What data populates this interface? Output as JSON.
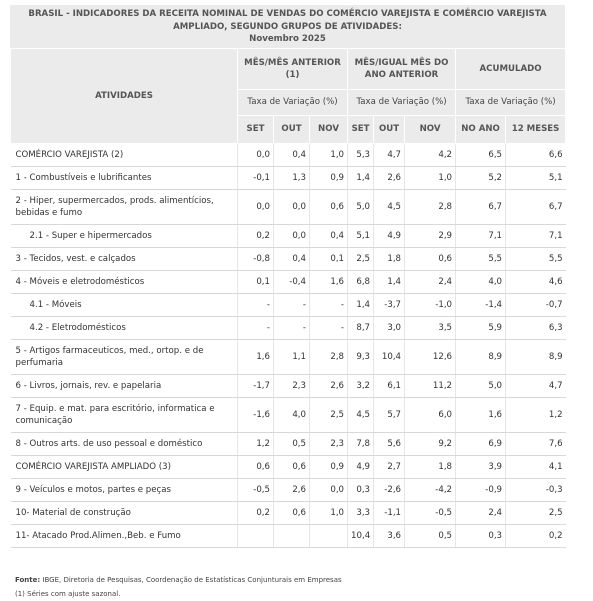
{
  "header": {
    "title": [
      "BRASIL - INDICADORES DA RECEITA NOMINAL DE VENDAS DO COMÉRCIO VAREJISTA E COMÉRCIO VAREJISTA",
      "AMPLIADO, SEGUNDO GRUPOS DE ATIVIDADES:",
      "Novembro 2025"
    ]
  },
  "table": {
    "row_header": "ATIVIDADES",
    "groups": [
      "MÊS/MÊS ANTERIOR (1)",
      "MÊS/IGUAL MÊS DO ANO ANTERIOR",
      "ACUMULADO"
    ],
    "group_spans": [
      3,
      3,
      2
    ],
    "subheaders": [
      "Taxa de Variação (%)",
      "Taxa de Variação (%)",
      "Taxa de Variação (%)"
    ],
    "columns": [
      "SET",
      "OUT",
      "NOV",
      "SET",
      "OUT",
      "NOV",
      "NO ANO",
      "12 MESES"
    ],
    "rows": [
      {
        "label": "COMÉRCIO VAREJISTA (2)",
        "values": [
          "0,0",
          "0,4",
          "1,0",
          "5,3",
          "4,7",
          "4,2",
          "6,5",
          "6,6"
        ]
      },
      {
        "label": "1 - Combustíveis e lubrificantes",
        "values": [
          "-0,1",
          "1,3",
          "0,9",
          "1,4",
          "2,6",
          "1,0",
          "5,2",
          "5,1"
        ]
      },
      {
        "label": "2 - Hiper, supermercados, prods.  alimentícios, bebidas e fumo",
        "values": [
          "0,0",
          "0,0",
          "0,6",
          "5,0",
          "4,5",
          "2,8",
          "6,7",
          "6,7"
        ]
      },
      {
        "label": "2.1 - Super e hipermercados",
        "indent": true,
        "values": [
          "0,2",
          "0,0",
          "0,4",
          "5,1",
          "4,9",
          "2,9",
          "7,1",
          "7,1"
        ]
      },
      {
        "label": "3 - Tecidos, vest. e calçados",
        "values": [
          "-0,8",
          "0,4",
          "0,1",
          "2,5",
          "1,8",
          "0,6",
          "5,5",
          "5,5"
        ]
      },
      {
        "label": "4 - Móveis e eletrodomésticos",
        "values": [
          "0,1",
          "-0,4",
          "1,6",
          "6,8",
          "1,4",
          "2,4",
          "4,0",
          "4,6"
        ]
      },
      {
        "label": "4.1 - Móveis",
        "indent": true,
        "values": [
          "-",
          "-",
          "-",
          "1,4",
          "-3,7",
          "-1,0",
          "-1,4",
          "-0,7"
        ]
      },
      {
        "label": "4.2 - Eletrodomésticos",
        "indent": true,
        "values": [
          "-",
          "-",
          "-",
          "8,7",
          "3,0",
          "3,5",
          "5,9",
          "6,3"
        ]
      },
      {
        "label": "5 - Artigos farmaceuticos, med., ortop. e de perfumaria",
        "values": [
          "1,6",
          "1,1",
          "2,8",
          "9,3",
          "10,4",
          "12,6",
          "8,9",
          "8,9"
        ]
      },
      {
        "label": "6 - Livros, jornais, rev. e papelaria",
        "values": [
          "-1,7",
          "2,3",
          "2,6",
          "3,2",
          "6,1",
          "11,2",
          "5,0",
          "4,7"
        ]
      },
      {
        "label": "7 - Equip. e mat. para escritório, informatica e comunicação",
        "values": [
          "-1,6",
          "4,0",
          "2,5",
          "4,5",
          "5,7",
          "6,0",
          "1,6",
          "1,2"
        ]
      },
      {
        "label": "8 - Outros arts. de uso pessoal e doméstico",
        "values": [
          "1,2",
          "0,5",
          "2,3",
          "7,8",
          "5,6",
          "9,2",
          "6,9",
          "7,6"
        ]
      },
      {
        "label": "COMÉRCIO VAREJISTA AMPLIADO (3)",
        "values": [
          "0,6",
          "0,6",
          "0,9",
          "4,9",
          "2,7",
          "1,8",
          "3,9",
          "4,1"
        ]
      },
      {
        "label": "9 - Veículos e motos, partes e peças",
        "values": [
          "-0,5",
          "2,6",
          "0,0",
          "0,3",
          "-2,6",
          "-4,2",
          "-0,9",
          "-0,3"
        ]
      },
      {
        "label": "10- Material de construção",
        "values": [
          "0,2",
          "0,6",
          "1,0",
          "3,3",
          "-1,1",
          "-0,5",
          "2,4",
          "2,5"
        ]
      },
      {
        "label": "11- Atacado Prod.Alimen.,Beb. e Fumo",
        "values": [
          null,
          null,
          null,
          "10,4",
          "3,6",
          "0,5",
          "0,3",
          "0,2"
        ]
      }
    ]
  },
  "footer": {
    "source_label": "Fonte:",
    "source": "IBGE, Diretoria de Pesquisas, Coordenação de Estatísticas Conjunturais em Empresas",
    "note": "(1) Séries com ajuste sazonal."
  }
}
